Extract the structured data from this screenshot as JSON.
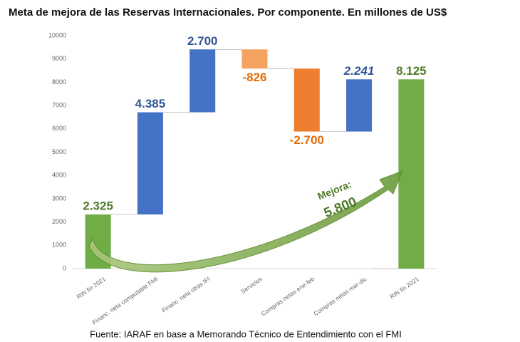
{
  "chart_data": {
    "type": "waterfall",
    "title": "Meta de mejora de las Reservas Internacionales. Por componente. En millones de US$",
    "categories": [
      "RIN fin 2021",
      "Financ. neta computable FMI",
      "Financ. neta otras IFI",
      "Servicios",
      "Compras netas ene-feb",
      "Compras netas mar-dic",
      "RIN fin 2021"
    ],
    "values": [
      2325,
      4385,
      2700,
      -826,
      -2700,
      2241,
      8125
    ],
    "value_labels": [
      "2.325",
      "4.385",
      "2.700",
      "-826",
      "-2.700",
      "2.241",
      "8.125"
    ],
    "totals": [
      0,
      6
    ],
    "colors": [
      "#70ad47",
      "#4472c4",
      "#4472c4",
      "#f4a460",
      "#ed7d31",
      "#4472c4",
      "#70ad47"
    ],
    "ylim": [
      0,
      10000
    ],
    "yticks": [
      0,
      1000,
      2000,
      3000,
      4000,
      5000,
      6000,
      7000,
      8000,
      9000,
      10000
    ],
    "grid": false,
    "annotation": {
      "text": "Mejora:",
      "value": 5800,
      "value_label": "5.800"
    },
    "source": "Fuente: IARAF en base a Memorando Técnico de Entendimiento con el FMI"
  }
}
